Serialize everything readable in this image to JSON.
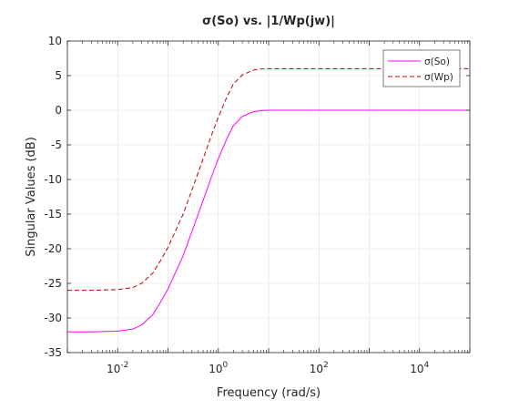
{
  "chart_data": {
    "type": "line",
    "title": "σ(So) vs. |1/Wp(jw)|",
    "xlabel": "Frequency (rad/s)",
    "ylabel": "Singular Values (dB)",
    "xscale": "log",
    "xlim": [
      0.001,
      100000
    ],
    "ylim": [
      -35,
      10
    ],
    "yticks": [
      -35,
      -30,
      -25,
      -20,
      -15,
      -10,
      -5,
      0,
      5,
      10
    ],
    "xticks": [
      {
        "value": 0.01,
        "base": "10",
        "exp": "-2"
      },
      {
        "value": 1,
        "base": "10",
        "exp": "0"
      },
      {
        "value": 100,
        "base": "10",
        "exp": "2"
      },
      {
        "value": 10000,
        "base": "10",
        "exp": "4"
      }
    ],
    "grid": true,
    "legend_position": "top-right",
    "series": [
      {
        "name": "σ(So)",
        "color": "#ff00ff",
        "style": "solid",
        "x": [
          0.001,
          0.003,
          0.01,
          0.02,
          0.03,
          0.05,
          0.07,
          0.1,
          0.15,
          0.2,
          0.3,
          0.5,
          0.7,
          1,
          1.5,
          2,
          3,
          5,
          7,
          10,
          20,
          100,
          1000,
          100000
        ],
        "y": [
          -32,
          -32,
          -31.9,
          -31.6,
          -31.0,
          -29.5,
          -27.8,
          -25.8,
          -23.0,
          -21.0,
          -17.5,
          -13.0,
          -10.0,
          -7.0,
          -4.0,
          -2.2,
          -0.9,
          -0.2,
          -0.05,
          0,
          0,
          0,
          0,
          0
        ]
      },
      {
        "name": "σ(Wp)",
        "color": "#c00000",
        "style": "dashed",
        "x": [
          0.001,
          0.003,
          0.01,
          0.02,
          0.03,
          0.05,
          0.07,
          0.1,
          0.15,
          0.2,
          0.3,
          0.5,
          0.7,
          1,
          1.5,
          2,
          3,
          5,
          7,
          10,
          20,
          100,
          1000,
          100000
        ],
        "y": [
          -26,
          -26,
          -25.9,
          -25.6,
          -25.0,
          -23.5,
          -21.8,
          -19.8,
          -17.0,
          -15.0,
          -11.5,
          -7.0,
          -4.0,
          -1.0,
          2.0,
          3.8,
          5.1,
          5.8,
          5.95,
          6,
          6,
          6,
          6,
          6
        ]
      }
    ]
  }
}
